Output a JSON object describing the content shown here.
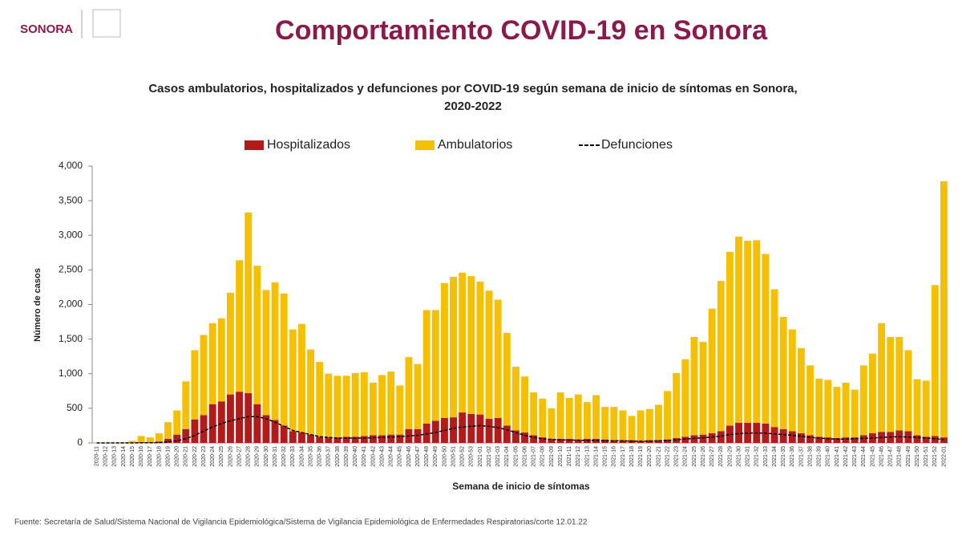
{
  "header": {
    "logo": "SONORA",
    "title": "Comportamiento COVID-19 en Sonora"
  },
  "chart_data": {
    "type": "bar",
    "stacked": true,
    "title": "Casos ambulatorios, hospitalizados y defunciones por COVID-19 según semana de inicio de síntomas en Sonora,",
    "subtitle": "2020-2022",
    "x_label": "Semana de inicio de síntomas",
    "y_label": "Número de casos",
    "categories": [
      "2020-11",
      "2020-12",
      "2020-13",
      "2020-14",
      "2020-15",
      "2020-16",
      "2020-17",
      "2020-18",
      "2020-19",
      "2020-20",
      "2020-21",
      "2020-22",
      "2020-23",
      "2020-24",
      "2020-25",
      "2020-26",
      "2020-27",
      "2020-28",
      "2020-29",
      "2020-30",
      "2020-31",
      "2020-32",
      "2020-33",
      "2020-34",
      "2020-35",
      "2020-36",
      "2020-37",
      "2020-38",
      "2020-39",
      "2020-40",
      "2020-41",
      "2020-42",
      "2020-43",
      "2020-44",
      "2020-45",
      "2020-46",
      "2020-47",
      "2020-48",
      "2020-49",
      "2020-50",
      "2020-51",
      "2020-52",
      "2020-53",
      "2021-01",
      "2021-02",
      "2021-03",
      "2021-04",
      "2021-05",
      "2021-06",
      "2021-07",
      "2021-08",
      "2021-09",
      "2021-10",
      "2021-11",
      "2021-12",
      "2021-13",
      "2021-14",
      "2021-15",
      "2021-16",
      "2021-17",
      "2021-18",
      "2021-19",
      "2021-20",
      "2021-21",
      "2021-22",
      "2021-23",
      "2021-24",
      "2021-25",
      "2021-26",
      "2021-27",
      "2021-28",
      "2021-29",
      "2021-30",
      "2021-31",
      "2021-32",
      "2021-33",
      "2021-34",
      "2021-35",
      "2021-36",
      "2021-37",
      "2021-38",
      "2021-39",
      "2021-40",
      "2021-41",
      "2021-42",
      "2021-43",
      "2021-44",
      "2021-45",
      "2021-46",
      "2021-47",
      "2021-48",
      "2021-49",
      "2021-50",
      "2021-51",
      "2021-52",
      "2022-01"
    ],
    "series": [
      {
        "name": "Hospitalizados",
        "color": "#b31b1b",
        "values": [
          0,
          0,
          0,
          0,
          5,
          10,
          10,
          20,
          60,
          120,
          200,
          340,
          400,
          560,
          600,
          700,
          740,
          720,
          560,
          400,
          330,
          250,
          170,
          150,
          120,
          90,
          80,
          80,
          90,
          90,
          100,
          110,
          110,
          120,
          120,
          200,
          200,
          280,
          320,
          360,
          370,
          440,
          420,
          410,
          350,
          360,
          250,
          180,
          150,
          110,
          80,
          60,
          60,
          60,
          50,
          60,
          60,
          50,
          40,
          40,
          40,
          30,
          40,
          40,
          50,
          70,
          90,
          110,
          120,
          140,
          170,
          250,
          290,
          290,
          290,
          280,
          230,
          200,
          170,
          140,
          110,
          90,
          80,
          70,
          80,
          80,
          110,
          140,
          160,
          160,
          180,
          170,
          110,
          90,
          100,
          80
        ]
      },
      {
        "name": "Ambulatorios",
        "color": "#f5c000",
        "values": [
          5,
          5,
          5,
          10,
          25,
          90,
          70,
          120,
          240,
          350,
          690,
          1000,
          1160,
          1170,
          1200,
          1470,
          1900,
          2610,
          2000,
          1810,
          1990,
          1910,
          1470,
          1570,
          1230,
          1080,
          920,
          890,
          880,
          920,
          920,
          760,
          870,
          910,
          710,
          1040,
          940,
          1640,
          1600,
          1950,
          2030,
          2020,
          1990,
          1920,
          1850,
          1710,
          1340,
          920,
          810,
          620,
          560,
          440,
          670,
          590,
          650,
          530,
          630,
          470,
          480,
          430,
          350,
          440,
          450,
          510,
          700,
          940,
          1120,
          1420,
          1340,
          1800,
          2170,
          2510,
          2690,
          2630,
          2640,
          2450,
          1990,
          1620,
          1470,
          1230,
          1010,
          840,
          830,
          740,
          790,
          690,
          1010,
          1150,
          1570,
          1370,
          1350,
          1170,
          810,
          810,
          2180,
          3700
        ]
      },
      {
        "name": "Defunciones",
        "type": "line",
        "color": "#000000",
        "values": [
          0,
          0,
          0,
          0,
          0,
          2,
          3,
          5,
          15,
          30,
          60,
          110,
          170,
          230,
          280,
          320,
          350,
          380,
          380,
          350,
          300,
          240,
          180,
          150,
          120,
          90,
          80,
          70,
          70,
          70,
          70,
          75,
          80,
          85,
          90,
          100,
          110,
          130,
          150,
          180,
          210,
          230,
          240,
          250,
          240,
          220,
          190,
          150,
          110,
          80,
          60,
          50,
          45,
          40,
          40,
          35,
          35,
          30,
          30,
          30,
          25,
          25,
          25,
          30,
          35,
          45,
          55,
          65,
          75,
          85,
          100,
          120,
          135,
          140,
          145,
          140,
          130,
          120,
          110,
          95,
          80,
          70,
          60,
          55,
          55,
          60,
          65,
          70,
          80,
          85,
          90,
          85,
          80,
          70,
          60,
          50
        ]
      }
    ],
    "ylim": [
      0,
      4000
    ],
    "yticks": [
      0,
      500,
      {
        "value": 1000,
        "label": "1,000"
      },
      {
        "value": 1500,
        "label": "1,500"
      },
      {
        "value": 2000,
        "label": "2,000"
      },
      {
        "value": 2500,
        "label": "2,500"
      },
      {
        "value": 3000,
        "label": "3,000"
      },
      {
        "value": 3500,
        "label": "3,500"
      },
      {
        "value": 4000,
        "label": "4,000"
      }
    ],
    "legend": "top",
    "source": "Fuente: Secretaría de Salud/Sistema Nacional de Vigilancia Epidemiológica/Sistema de Vigilancia Epidemiológica de Enfermedades Respiratorias/corte 12.01.22"
  }
}
